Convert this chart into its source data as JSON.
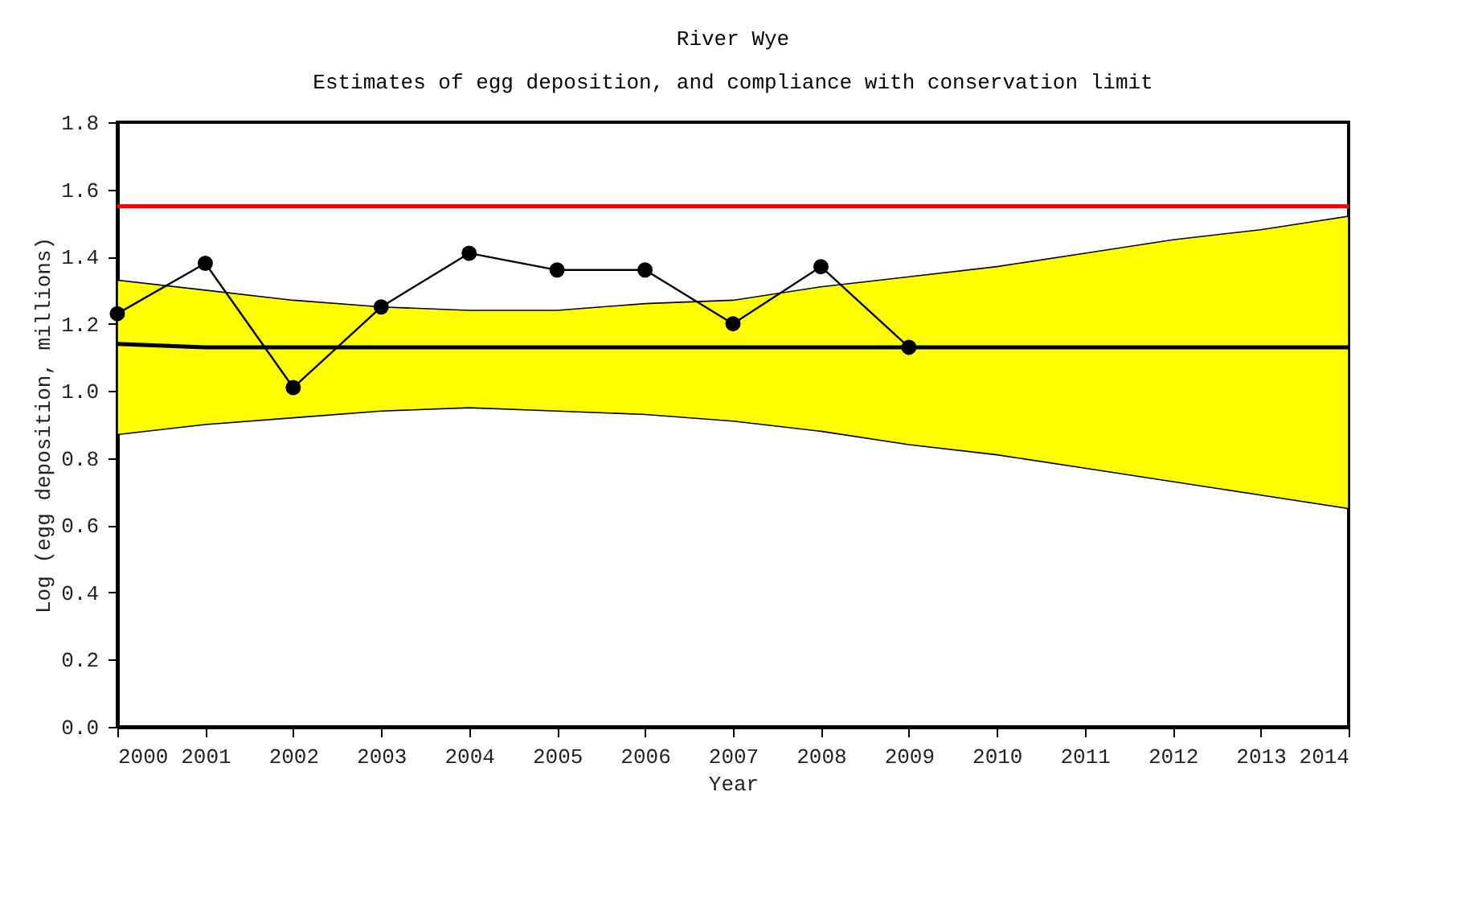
{
  "chart_data": {
    "type": "line",
    "title": "River Wye",
    "subtitle": "Estimates of egg deposition, and compliance with conservation limit",
    "xlabel": "Year",
    "ylabel": "Log (egg deposition, millions)",
    "xlim": [
      2000,
      2014
    ],
    "xticks": [
      2000,
      2001,
      2002,
      2003,
      2004,
      2005,
      2006,
      2007,
      2008,
      2009,
      2010,
      2011,
      2012,
      2013,
      2014
    ],
    "ylim": [
      0,
      1.8
    ],
    "yticks": [
      {
        "value": 0,
        "label": "0.0"
      },
      {
        "value": 0.2,
        "label": "0.2"
      },
      {
        "value": 0.4,
        "label": "0.4"
      },
      {
        "value": 0.6,
        "label": "0.6"
      },
      {
        "value": 0.8,
        "label": "0.8"
      },
      {
        "value": 1.0,
        "label": "1.0"
      },
      {
        "value": 1.2,
        "label": "1.2"
      },
      {
        "value": 1.4,
        "label": "1.4"
      },
      {
        "value": 1.6,
        "label": "1.6"
      },
      {
        "value": 1.8,
        "label": "1.8"
      }
    ],
    "grid": false,
    "line_style": "solid",
    "series": [
      {
        "type": "line",
        "color": "#000000",
        "x": [
          2000,
          2001,
          2002,
          2003,
          2004,
          2005,
          2006,
          2007,
          2008,
          2009,
          2010,
          2011,
          2012,
          2013,
          2014
        ],
        "values": [
          1.14,
          1.13,
          1.13,
          1.13,
          1.13,
          1.13,
          1.13,
          1.13,
          1.13,
          1.13,
          1.13,
          1.13,
          1.13,
          1.13,
          1.13
        ],
        "lower": [
          0.87,
          0.9,
          0.92,
          0.94,
          0.95,
          0.94,
          0.93,
          0.91,
          0.88,
          0.84,
          0.81,
          0.77,
          0.73,
          0.69,
          0.65
        ],
        "upper": [
          1.33,
          1.3,
          1.27,
          1.25,
          1.24,
          1.24,
          1.26,
          1.27,
          1.31,
          1.34,
          1.37,
          1.41,
          1.45,
          1.48,
          1.52
        ],
        "marker": "none"
      },
      {
        "color": "#000000",
        "x": [
          2000,
          2001,
          2002,
          2003,
          2004,
          2005,
          2006,
          2007,
          2008,
          2009
        ],
        "values": [
          1.23,
          1.38,
          1.01,
          1.25,
          1.41,
          1.36,
          1.36,
          1.2,
          1.37,
          1.13
        ],
        "marker": "circle"
      }
    ],
    "ref_lines": [
      {
        "axis": "y",
        "value": 1.55,
        "color": "#ff0000"
      }
    ]
  }
}
